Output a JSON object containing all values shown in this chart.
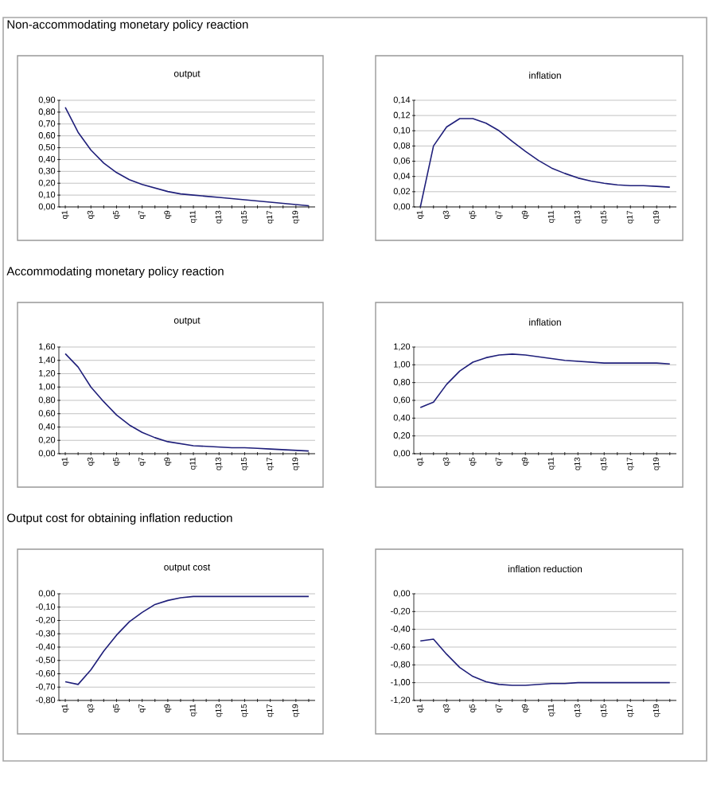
{
  "chart_data": [
    {
      "type": "line",
      "title": "output",
      "annotations": [
        "Non-accommodating monetary policy reaction"
      ],
      "categories": [
        "q1",
        null,
        "q3",
        null,
        "q5",
        null,
        "q7",
        null,
        "q9",
        null,
        "q11",
        null,
        "q13",
        null,
        "q15",
        null,
        "q17",
        null,
        "q19",
        null
      ],
      "values": [
        0.84,
        0.63,
        0.48,
        0.37,
        0.29,
        0.23,
        0.19,
        0.16,
        0.13,
        0.11,
        0.1,
        0.09,
        0.08,
        0.07,
        0.06,
        0.05,
        0.04,
        0.03,
        0.02,
        0.01
      ],
      "color": "#1f1f7a",
      "ylim": [
        0,
        0.9
      ],
      "yticks": [
        {
          "value": 0,
          "label": "0,00"
        },
        {
          "value": 0.1,
          "label": "0,10"
        },
        {
          "value": 0.2,
          "label": "0,20"
        },
        {
          "value": 0.3,
          "label": "0,30"
        },
        {
          "value": 0.4,
          "label": "0,40"
        },
        {
          "value": 0.5,
          "label": "0,50"
        },
        {
          "value": 0.6,
          "label": "0,60"
        },
        {
          "value": 0.7,
          "label": "0,70"
        },
        {
          "value": 0.8,
          "label": "0,80"
        },
        {
          "value": 0.9,
          "label": "0,90"
        }
      ],
      "grid": "y"
    },
    {
      "type": "line",
      "title": "inflation",
      "categories": [
        "q1",
        null,
        "q3",
        null,
        "q5",
        null,
        "q7",
        null,
        "q9",
        null,
        "q11",
        null,
        "q13",
        null,
        "q15",
        null,
        "q17",
        null,
        "q19",
        null
      ],
      "values": [
        0.0,
        0.08,
        0.105,
        0.116,
        0.116,
        0.11,
        0.1,
        0.086,
        0.073,
        0.061,
        0.051,
        0.044,
        0.038,
        0.034,
        0.031,
        0.029,
        0.028,
        0.028,
        0.027,
        0.026
      ],
      "color": "#1f1f7a",
      "ylim": [
        0,
        0.14
      ],
      "yticks": [
        {
          "value": 0,
          "label": "0,00"
        },
        {
          "value": 0.02,
          "label": "0,02"
        },
        {
          "value": 0.04,
          "label": "0,04"
        },
        {
          "value": 0.06,
          "label": "0,06"
        },
        {
          "value": 0.08,
          "label": "0,08"
        },
        {
          "value": 0.1,
          "label": "0,10"
        },
        {
          "value": 0.12,
          "label": "0,12"
        },
        {
          "value": 0.14,
          "label": "0,14"
        }
      ],
      "grid": "y"
    },
    {
      "type": "line",
      "title": "output",
      "annotations": [
        "Accommodating monetary policy reaction"
      ],
      "categories": [
        "q1",
        null,
        "q3",
        null,
        "q5",
        null,
        "q7",
        null,
        "q9",
        null,
        "q11",
        null,
        "q13",
        null,
        "q15",
        null,
        "q17",
        null,
        "q19",
        null
      ],
      "values": [
        1.5,
        1.3,
        1.0,
        0.78,
        0.58,
        0.43,
        0.32,
        0.24,
        0.18,
        0.15,
        0.12,
        0.11,
        0.1,
        0.09,
        0.09,
        0.08,
        0.07,
        0.06,
        0.05,
        0.04
      ],
      "color": "#1f1f7a",
      "ylim": [
        0,
        1.6
      ],
      "yticks": [
        {
          "value": 0,
          "label": "0,00"
        },
        {
          "value": 0.2,
          "label": "0,20"
        },
        {
          "value": 0.4,
          "label": "0,40"
        },
        {
          "value": 0.6,
          "label": "0,60"
        },
        {
          "value": 0.8,
          "label": "0,80"
        },
        {
          "value": 1.0,
          "label": "1,00"
        },
        {
          "value": 1.2,
          "label": "1,20"
        },
        {
          "value": 1.4,
          "label": "1,40"
        },
        {
          "value": 1.6,
          "label": "1,60"
        }
      ],
      "grid": "y"
    },
    {
      "type": "line",
      "title": "inflation",
      "categories": [
        "q1",
        null,
        "q3",
        null,
        "q5",
        null,
        "q7",
        null,
        "q9",
        null,
        "q11",
        null,
        "q13",
        null,
        "q15",
        null,
        "q17",
        null,
        "q19",
        null
      ],
      "values": [
        0.52,
        0.58,
        0.78,
        0.93,
        1.03,
        1.08,
        1.11,
        1.12,
        1.11,
        1.09,
        1.07,
        1.05,
        1.04,
        1.03,
        1.02,
        1.02,
        1.02,
        1.02,
        1.02,
        1.01
      ],
      "color": "#1f1f7a",
      "ylim": [
        0,
        1.2
      ],
      "yticks": [
        {
          "value": 0,
          "label": "0,00"
        },
        {
          "value": 0.2,
          "label": "0,20"
        },
        {
          "value": 0.4,
          "label": "0,40"
        },
        {
          "value": 0.6,
          "label": "0,60"
        },
        {
          "value": 0.8,
          "label": "0,80"
        },
        {
          "value": 1.0,
          "label": "1,00"
        },
        {
          "value": 1.2,
          "label": "1,20"
        }
      ],
      "grid": "y"
    },
    {
      "type": "line",
      "title": "output cost",
      "annotations": [
        "Output cost for obtaining inflation reduction"
      ],
      "categories": [
        "q1",
        null,
        "q3",
        null,
        "q5",
        null,
        "q7",
        null,
        "q9",
        null,
        "q11",
        null,
        "q13",
        null,
        "q15",
        null,
        "q17",
        null,
        "q19",
        null
      ],
      "values": [
        -0.66,
        -0.68,
        -0.57,
        -0.43,
        -0.31,
        -0.21,
        -0.14,
        -0.08,
        -0.05,
        -0.03,
        -0.02,
        -0.02,
        -0.02,
        -0.02,
        -0.02,
        -0.02,
        -0.02,
        -0.02,
        -0.02,
        -0.02
      ],
      "color": "#1f1f7a",
      "ylim": [
        -0.8,
        0
      ],
      "yticks": [
        {
          "value": -0.8,
          "label": "-0,80"
        },
        {
          "value": -0.7,
          "label": "-0,70"
        },
        {
          "value": -0.6,
          "label": "-0,60"
        },
        {
          "value": -0.5,
          "label": "-0,50"
        },
        {
          "value": -0.4,
          "label": "-0,40"
        },
        {
          "value": -0.3,
          "label": "-0,30"
        },
        {
          "value": -0.2,
          "label": "-0,20"
        },
        {
          "value": -0.1,
          "label": "-0,10"
        },
        {
          "value": 0,
          "label": "0,00"
        }
      ],
      "grid": "y"
    },
    {
      "type": "line",
      "title": "inflation reduction",
      "categories": [
        "q1",
        null,
        "q3",
        null,
        "q5",
        null,
        "q7",
        null,
        "q9",
        null,
        "q11",
        null,
        "q13",
        null,
        "q15",
        null,
        "q17",
        null,
        "q19",
        null
      ],
      "values": [
        -0.53,
        -0.51,
        -0.68,
        -0.83,
        -0.93,
        -0.99,
        -1.02,
        -1.03,
        -1.03,
        -1.02,
        -1.01,
        -1.01,
        -1.0,
        -1.0,
        -1.0,
        -1.0,
        -1.0,
        -1.0,
        -1.0,
        -1.0
      ],
      "color": "#1f1f7a",
      "ylim": [
        -1.2,
        0
      ],
      "yticks": [
        {
          "value": -1.2,
          "label": "-1,20"
        },
        {
          "value": -1.0,
          "label": "-1,00"
        },
        {
          "value": -0.8,
          "label": "-0,80"
        },
        {
          "value": -0.6,
          "label": "-0,60"
        },
        {
          "value": -0.4,
          "label": "-0,40"
        },
        {
          "value": -0.2,
          "label": "-0,20"
        },
        {
          "value": 0,
          "label": "0,00"
        }
      ],
      "grid": "y"
    }
  ]
}
